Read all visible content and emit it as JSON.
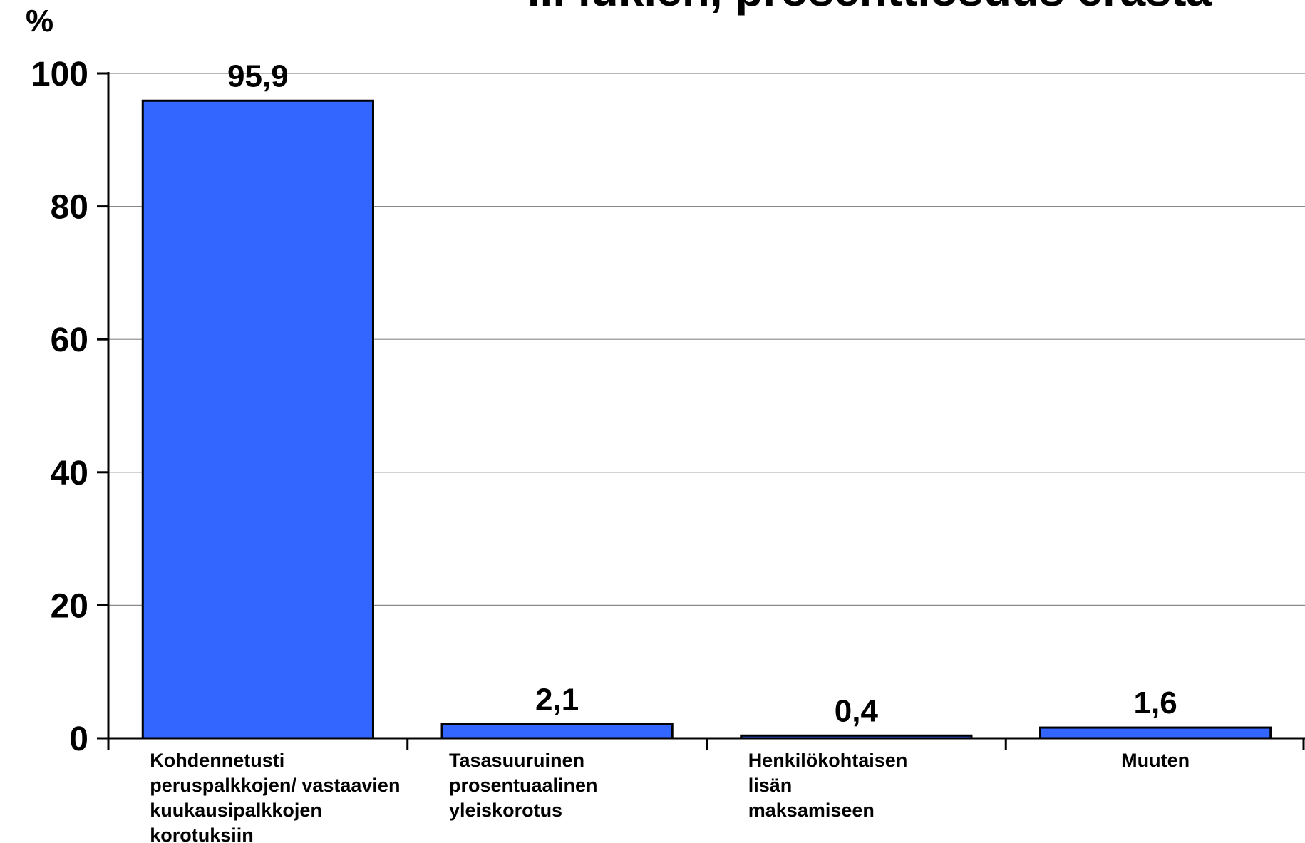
{
  "chart_data": {
    "type": "bar",
    "title": "... lukien, prosenttiosuus erästä",
    "unit_label": "%",
    "ylim": [
      0,
      100
    ],
    "yticks": [
      0,
      20,
      40,
      60,
      80,
      100
    ],
    "grid": true,
    "bar_color": "#3366FF",
    "categories": [
      [
        "Kohdennetusti",
        "peruspalkkojen/ vastaavien",
        "kuukausipalkkojen",
        "korotuksiin"
      ],
      [
        "Tasasuuruinen",
        "prosentuaalinen",
        "yleiskorotus"
      ],
      [
        "Henkilökohtaisen",
        "lisän",
        "maksamiseen"
      ],
      [
        "Muuten"
      ]
    ],
    "values": [
      95.9,
      2.1,
      0.4,
      1.6
    ],
    "value_labels": [
      "95,9",
      "2,1",
      "0,4",
      "1,6"
    ]
  }
}
